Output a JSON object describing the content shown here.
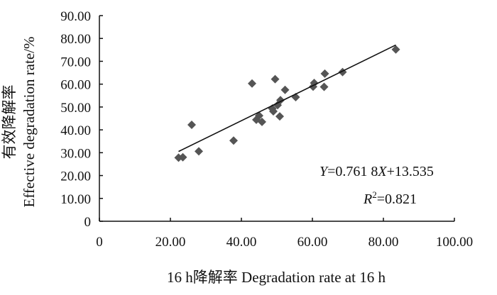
{
  "chart_data": {
    "type": "scatter",
    "xlabel": "16 h降解率  Degradation rate at 16 h",
    "ylabel_cn": "有效降解率",
    "ylabel_en": "Effective degradation rate/%",
    "xlim": [
      0,
      100
    ],
    "ylim": [
      0,
      90
    ],
    "x_ticks": [
      "0",
      "20.00",
      "40.00",
      "60.00",
      "80.00",
      "100.00"
    ],
    "y_ticks": [
      "0",
      "10.00",
      "20.00",
      "30.00",
      "40.00",
      "50.00",
      "60.00",
      "70.00",
      "80.00",
      "90.00"
    ],
    "marker": "diamond",
    "marker_color": "#555555",
    "line_color": "#111111",
    "points": [
      {
        "x": 22.3,
        "y": 27.8
      },
      {
        "x": 23.5,
        "y": 28.0
      },
      {
        "x": 26.0,
        "y": 42.2
      },
      {
        "x": 28.0,
        "y": 30.6
      },
      {
        "x": 37.8,
        "y": 35.3
      },
      {
        "x": 43.0,
        "y": 60.3
      },
      {
        "x": 44.2,
        "y": 44.4
      },
      {
        "x": 45.0,
        "y": 46.2
      },
      {
        "x": 45.8,
        "y": 43.5
      },
      {
        "x": 48.7,
        "y": 49.3
      },
      {
        "x": 49.0,
        "y": 48.1
      },
      {
        "x": 49.5,
        "y": 62.2
      },
      {
        "x": 50.2,
        "y": 50.8
      },
      {
        "x": 50.8,
        "y": 45.9
      },
      {
        "x": 51.0,
        "y": 53.0
      },
      {
        "x": 52.3,
        "y": 57.5
      },
      {
        "x": 55.3,
        "y": 54.3
      },
      {
        "x": 60.2,
        "y": 58.9
      },
      {
        "x": 60.5,
        "y": 60.5
      },
      {
        "x": 63.3,
        "y": 58.8
      },
      {
        "x": 63.5,
        "y": 64.6
      },
      {
        "x": 68.5,
        "y": 65.3
      },
      {
        "x": 83.5,
        "y": 75.2
      }
    ],
    "fit": {
      "slope": 0.7618,
      "intercept": 13.535,
      "x_range": [
        22.3,
        83.5
      ]
    },
    "equation": {
      "y_var": "Y",
      "eq_text": "=0.761 8",
      "x_var": "X",
      "rest": "+13.535"
    },
    "r2": {
      "label": "R",
      "sup": "2",
      "value": "=0.821"
    }
  }
}
